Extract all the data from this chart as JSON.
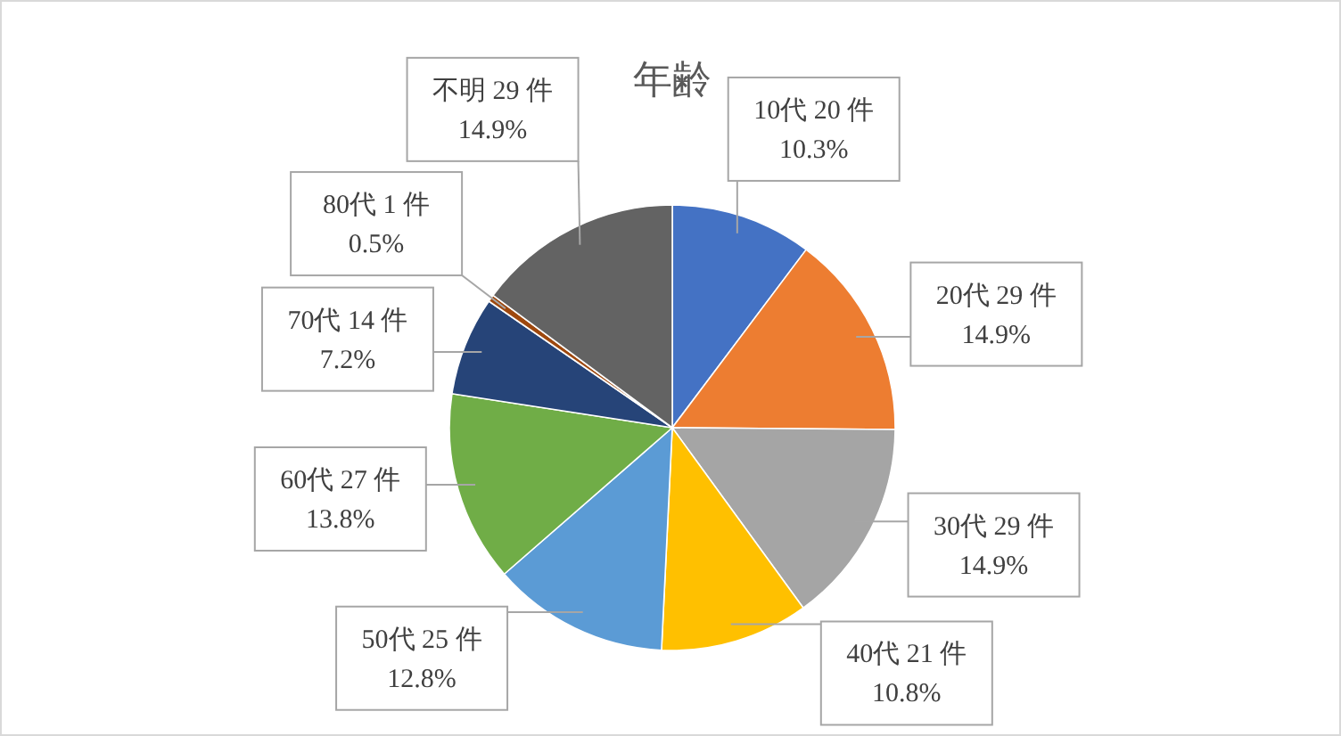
{
  "chart_data": {
    "type": "pie",
    "title": "年齢",
    "categories": [
      "10代",
      "20代",
      "30代",
      "40代",
      "50代",
      "60代",
      "70代",
      "80代",
      "不明"
    ],
    "values": [
      20,
      29,
      29,
      21,
      25,
      27,
      14,
      1,
      29
    ],
    "colors": [
      "#4472c4",
      "#ed7d31",
      "#a5a5a5",
      "#ffc000",
      "#5b9bd5",
      "#70ad47",
      "#264478",
      "#9e480e",
      "#636363"
    ],
    "value_labels": [
      "20 件\n10.3%",
      "29 件\n14.9%",
      "29 件\n14.9%",
      "21 件\n10.8%",
      "25 件\n12.8%",
      "27 件\n13.8%",
      "14 件\n7.2%",
      "1 件\n0.5%",
      "29 件\n14.9%"
    ]
  }
}
